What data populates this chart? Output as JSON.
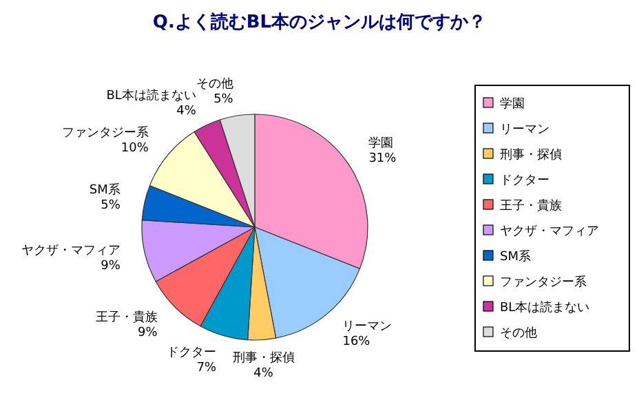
{
  "chart_data": {
    "type": "pie",
    "title": "Q.よく読むBL本のジャンルは何ですか？",
    "categories": [
      "学園",
      "リーマン",
      "刑事・探偵",
      "ドクター",
      "王子・貴族",
      "ヤクザ・マフィア",
      "SM系",
      "ファンタジー系",
      "BL本は読まない",
      "その他"
    ],
    "values": [
      31,
      16,
      4,
      7,
      9,
      9,
      5,
      10,
      4,
      5
    ],
    "value_labels": [
      "31%",
      "16%",
      "4%",
      "7%",
      "9%",
      "9%",
      "5%",
      "10%",
      "4%",
      "5%"
    ],
    "colors": [
      "#ff99cc",
      "#99ccff",
      "#ffcc66",
      "#0099cc",
      "#ff6666",
      "#cc99ff",
      "#0066cc",
      "#ffffcc",
      "#cc3399",
      "#dddddd"
    ],
    "legend": "right"
  }
}
